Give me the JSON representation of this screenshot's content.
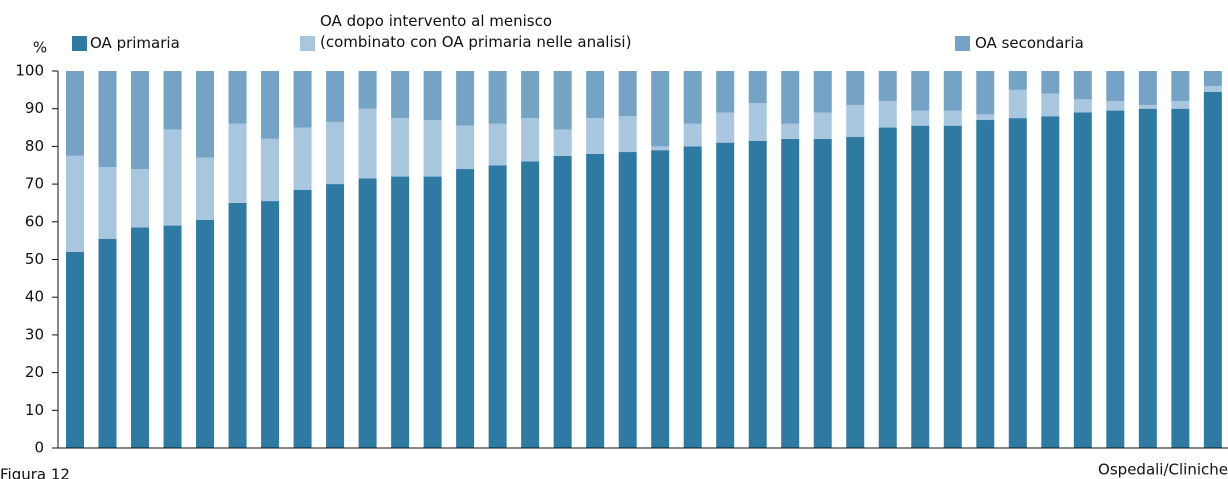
{
  "chart_data": {
    "type": "stacked-bar",
    "y_label": "%",
    "caption": "Figura 12",
    "x_label": "Ospedali/Cliniche",
    "categories": [
      null,
      null,
      null,
      null,
      null,
      null,
      null,
      null,
      null,
      null,
      null,
      null,
      null,
      null,
      null,
      null,
      null,
      null,
      null,
      null,
      null,
      null,
      null,
      null,
      null,
      null,
      null,
      null,
      null,
      null,
      null,
      null,
      null,
      null,
      null,
      null
    ],
    "series": [
      {
        "name": "OA primaria",
        "color": "#2e7aa3",
        "values": [
          52,
          55.5,
          58.5,
          59,
          60.5,
          65,
          65.5,
          68.5,
          70,
          71.5,
          72,
          72,
          74,
          75,
          76,
          77.5,
          78,
          78.5,
          79,
          80,
          81,
          81.5,
          82,
          82,
          82.5,
          85,
          85.5,
          85.5,
          87,
          87.5,
          88,
          89,
          89.5,
          90,
          90,
          94.5
        ]
      },
      {
        "name": "OA dopo intervento al menisco\n(combinato con OA primaria nelle analisi)",
        "color": "#a9c6df",
        "values": [
          25.5,
          19,
          15.5,
          25.5,
          16.5,
          21,
          16.5,
          16.5,
          16.5,
          18.5,
          15.5,
          15,
          11.5,
          11,
          11.5,
          7,
          9.5,
          9.5,
          1,
          6,
          8,
          10,
          4,
          7,
          8.5,
          7,
          4,
          4,
          1.5,
          7.5,
          6,
          3.5,
          2.5,
          1,
          2,
          1.5
        ]
      },
      {
        "name": "OA secondaria",
        "color": "#74a3c6",
        "values": [
          22.5,
          25.5,
          26,
          15.5,
          23,
          14,
          18,
          15,
          13.5,
          10,
          12.5,
          13,
          14.5,
          14,
          12.5,
          15.5,
          12.5,
          12,
          20,
          14,
          11,
          8.5,
          14,
          11,
          9,
          8,
          10.5,
          10.5,
          11.5,
          5,
          6,
          7.5,
          8,
          9,
          8,
          4
        ]
      }
    ],
    "ylim": [
      0,
      100
    ],
    "yticks": [
      0,
      10,
      20,
      30,
      40,
      50,
      60,
      70,
      80,
      90,
      100
    ]
  }
}
